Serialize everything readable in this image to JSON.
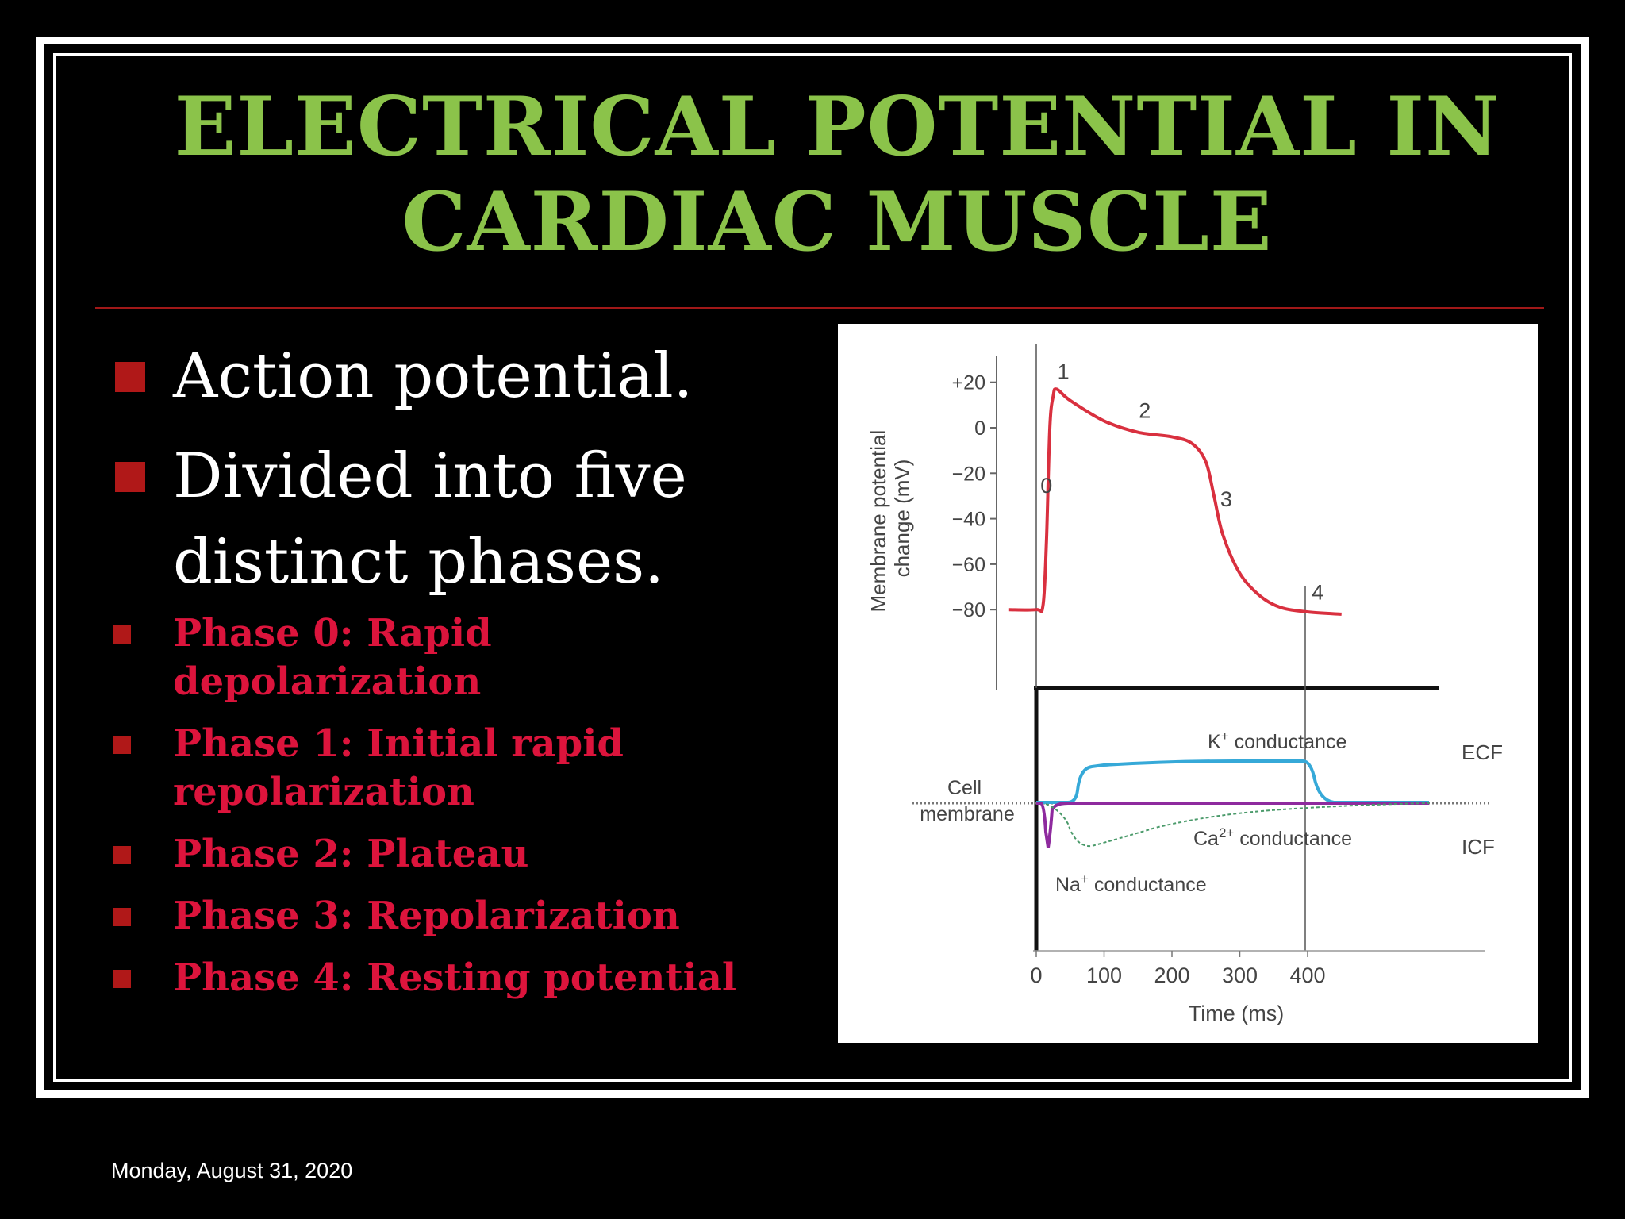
{
  "slide": {
    "title_line1": "ELECTRICAL POTENTIAL IN",
    "title_line2": "CARDIAC MUSCLE",
    "bullets": [
      {
        "text": "Action potential."
      },
      {
        "text_line1": "Divided into five",
        "text_line2": "distinct phases."
      }
    ],
    "phases": [
      {
        "line1": "Phase 0: Rapid",
        "line2": "depolarization"
      },
      {
        "line1": "Phase 1: Initial rapid",
        "line2": "repolarization"
      },
      {
        "line1": "Phase 2: Plateau"
      },
      {
        "line1": "Phase 3: Repolarization"
      },
      {
        "line1": "Phase 4: Resting potential"
      }
    ],
    "footer_date": "Monday, August 31, 2020"
  },
  "colors": {
    "title": "#8bc34a",
    "bullet_square": "#b01818",
    "phase_text": "#dc143c",
    "divider": "#a01818",
    "action_potential_curve": "#d9303f",
    "k_conductance": "#36a9d8",
    "na_conductance": "#8e2a9e",
    "ca_conductance": "#4a9a6a"
  },
  "figure": {
    "ylabel_line1": "Membrane potential",
    "ylabel_line2": "change (mV)",
    "xlabel": "Time (ms)",
    "y_ticks": [
      "+20",
      "0",
      "−20",
      "−40",
      "−60",
      "−80"
    ],
    "x_ticks": [
      "0",
      "100",
      "200",
      "300",
      "400"
    ],
    "phase_labels": [
      "0",
      "1",
      "2",
      "3",
      "4"
    ],
    "cell_membrane_line1": "Cell",
    "cell_membrane_line2": "membrane",
    "ecf": "ECF",
    "icf": "ICF",
    "k_label": "K",
    "k_sup": "+",
    "ca_label": "Ca",
    "ca_sup": "2+",
    "na_label": "Na",
    "na_sup": "+",
    "conductance": " conductance"
  },
  "chart_data": {
    "type": "line",
    "xlabel": "Time (ms)",
    "ylabel": "Membrane potential change (mV)",
    "xlim": [
      0,
      450
    ],
    "ylim": [
      -80,
      20
    ],
    "x_ticks": [
      0,
      100,
      200,
      300,
      400
    ],
    "y_ticks": [
      20,
      0,
      -20,
      -40,
      -60,
      -80
    ],
    "series": [
      {
        "x": [
          -40,
          0,
          10,
          15,
          20,
          25,
          30,
          50,
          100,
          150,
          200,
          230,
          250,
          262,
          275,
          300,
          330,
          360,
          400,
          450
        ],
        "y": [
          -80,
          -80,
          -78,
          -50,
          0,
          14,
          17,
          12,
          3,
          -2,
          -4,
          -7,
          -15,
          -30,
          -47,
          -64,
          -74,
          -79,
          -81,
          -82
        ]
      }
    ],
    "phase_annotations": [
      {
        "label": "0",
        "x": 15,
        "y": -30
      },
      {
        "label": "1",
        "x": 40,
        "y": 20
      },
      {
        "label": "2",
        "x": 160,
        "y": 3
      },
      {
        "label": "3",
        "x": 280,
        "y": -36
      },
      {
        "label": "4",
        "x": 415,
        "y": -77
      }
    ]
  }
}
